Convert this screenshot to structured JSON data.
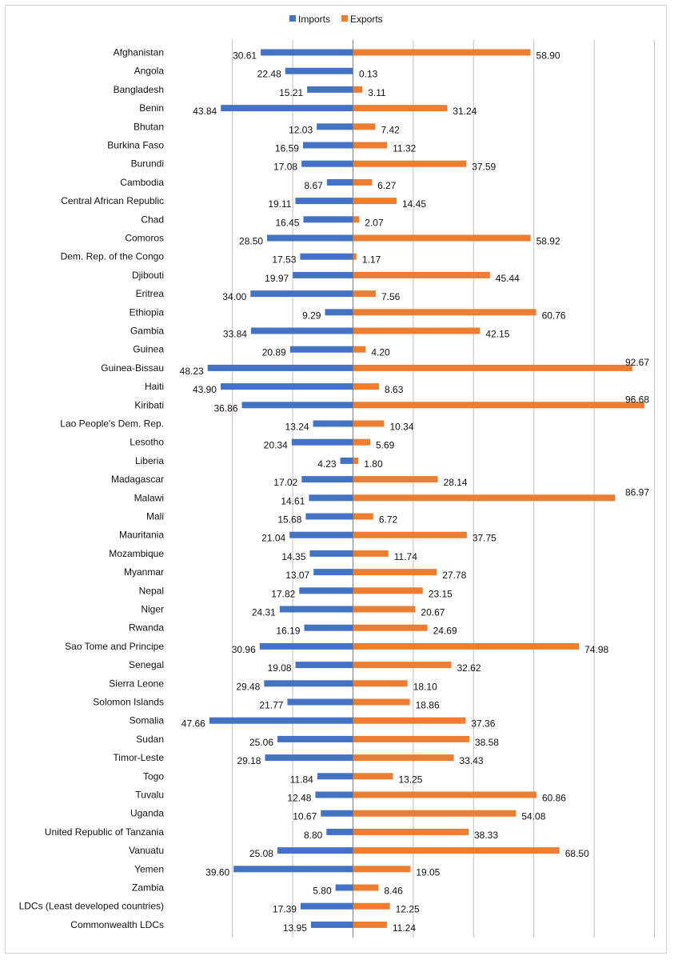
{
  "chart_data": {
    "type": "bar",
    "orientation": "horizontal",
    "layout": "diverging",
    "legend_position": "top",
    "grid": true,
    "xlim": [
      -60,
      100
    ],
    "colors": {
      "imports": "#4472C4",
      "exports": "#ED7D31",
      "grid": "#bfbfbf",
      "axis": "#7f7f7f"
    },
    "categories": [
      "Afghanistan",
      "Angola",
      "Bangladesh",
      "Benin",
      "Bhutan",
      "Burkina Faso",
      "Burundi",
      "Cambodia",
      "Central African Republic",
      "Chad",
      "Comoros",
      "Dem. Rep. of the Congo",
      "Djibouti",
      "Eritrea",
      "Ethiopia",
      "Gambia",
      "Guinea",
      "Guinea-Bissau",
      "Haiti",
      "Kiribati",
      "Lao People's Dem. Rep.",
      "Lesotho",
      "Liberia",
      "Madagascar",
      "Malawi",
      "Mali",
      "Mauritania",
      "Mozambique",
      "Myanmar",
      "Nepal",
      "Niger",
      "Rwanda",
      "Sao Tome and Principe",
      "Senegal",
      "Sierra Leone",
      "Solomon Islands",
      "Somalia",
      "Sudan",
      "Timor-Leste",
      "Togo",
      "Tuvalu",
      "Uganda",
      "United Republic of Tanzania",
      "Vanuatu",
      "Yemen",
      "Zambia",
      "LDCs (Least developed countries)",
      "Commonwealth LDCs"
    ],
    "series": [
      {
        "name": "Imports",
        "values": [
          30.61,
          22.48,
          15.21,
          43.84,
          12.03,
          16.59,
          17.08,
          8.67,
          19.11,
          16.45,
          28.5,
          17.53,
          19.97,
          34.0,
          9.29,
          33.84,
          20.89,
          48.23,
          43.9,
          36.86,
          13.24,
          20.34,
          4.23,
          17.02,
          14.61,
          15.68,
          21.04,
          14.35,
          13.07,
          17.82,
          24.31,
          16.19,
          30.96,
          19.08,
          29.48,
          21.77,
          47.66,
          25.06,
          29.18,
          11.84,
          12.48,
          10.67,
          8.8,
          25.08,
          39.6,
          5.8,
          17.39,
          13.95
        ],
        "labels": [
          "30.61",
          "22.48",
          "15.21",
          "43.84",
          "12.03",
          "16.59",
          "17.08",
          "8.67",
          "19.11",
          "16.45",
          "28.50",
          "17.53",
          "19.97",
          "34.00",
          "9.29",
          "33.84",
          "20.89",
          "48.23",
          "43.90",
          "36.86",
          "13.24",
          "20.34",
          "4.23",
          "17.02",
          "14.61",
          "15.68",
          "21.04",
          "14.35",
          "13.07",
          "17.82",
          "24.31",
          "16.19",
          "30.96",
          "19.08",
          "29.48",
          "21.77",
          "47.66",
          "25.06",
          "29.18",
          "11.84",
          "12.48",
          "10.67",
          "8.80",
          "25.08",
          "39.60",
          "5.80",
          "17.39",
          "13.95"
        ]
      },
      {
        "name": "Exports",
        "values": [
          58.9,
          0.13,
          3.11,
          31.24,
          7.42,
          11.32,
          37.59,
          6.27,
          14.45,
          2.07,
          58.92,
          1.17,
          45.44,
          7.56,
          60.76,
          42.15,
          4.2,
          92.67,
          8.63,
          96.68,
          10.34,
          5.69,
          1.8,
          28.14,
          86.97,
          6.72,
          37.75,
          11.74,
          27.78,
          23.15,
          20.67,
          24.69,
          74.98,
          32.62,
          18.1,
          18.86,
          37.36,
          38.58,
          33.43,
          13.25,
          60.86,
          54.08,
          38.33,
          68.5,
          19.05,
          8.46,
          12.25,
          11.24
        ],
        "labels": [
          "58.90",
          "0.13",
          "3.11",
          "31.24",
          "7.42",
          "11.32",
          "37.59",
          "6.27",
          "14.45",
          "2.07",
          "58.92",
          "1.17",
          "45.44",
          "7.56",
          "60.76",
          "42.15",
          "4.20",
          "92.67",
          "8.63",
          "96.68",
          "10.34",
          "5.69",
          "1.80",
          "28.14",
          "86.97",
          "6.72",
          "37.75",
          "11.74",
          "27.78",
          "23.15",
          "20.67",
          "24.69",
          "74.98",
          "32.62",
          "18.10",
          "18.86",
          "37.36",
          "38.58",
          "33.43",
          "13.25",
          "60.86",
          "54.08",
          "38.33",
          "68.50",
          "19.05",
          "8.46",
          "12.25",
          "11.24"
        ]
      }
    ]
  }
}
